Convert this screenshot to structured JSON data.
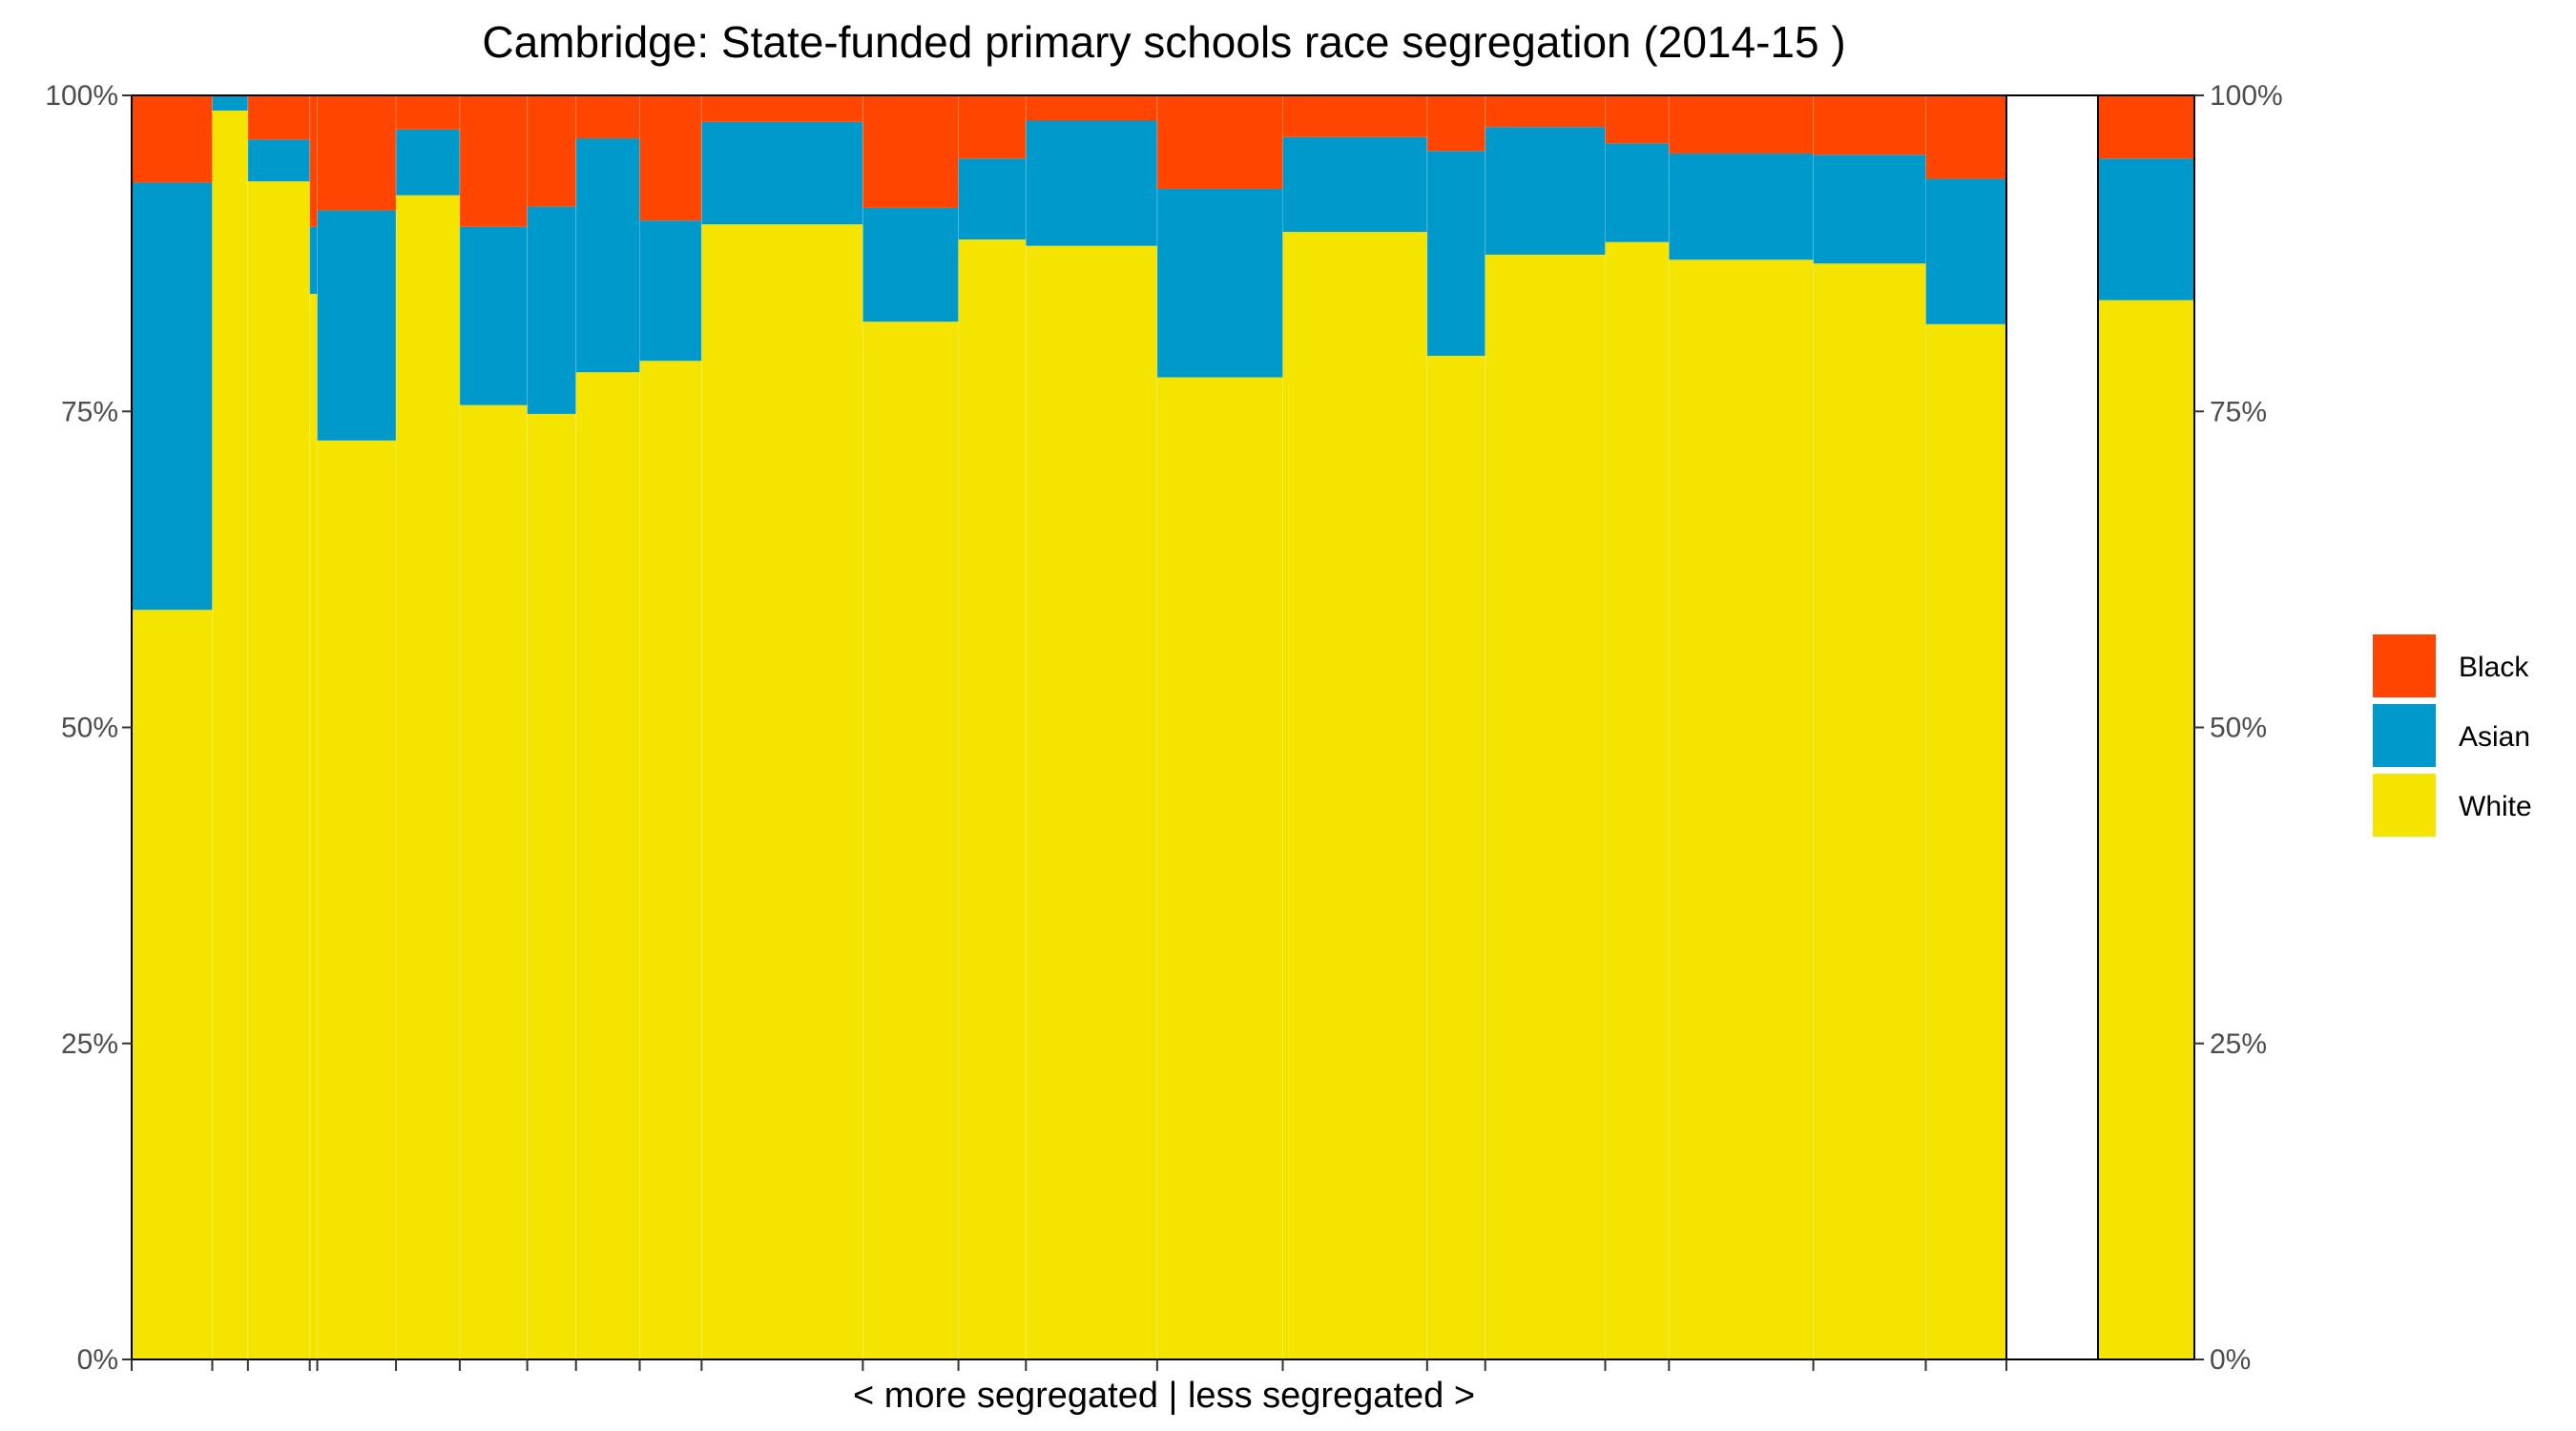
{
  "chart_data": {
    "type": "bar",
    "title": "Cambridge: State-funded primary schools race segregation (2014-15 )",
    "xlabel": "< more segregated | less segregated >",
    "ylabel": "",
    "ylim": [
      0,
      100
    ],
    "y_ticks": [
      "0%",
      "25%",
      "50%",
      "75%",
      "100%"
    ],
    "legend": {
      "position": "right",
      "entries": [
        "Black",
        "Asian",
        "White"
      ]
    },
    "colors": {
      "White": "#F5E300",
      "Asian": "#0099CC",
      "Black": "#FF4500"
    },
    "schools": [
      {
        "x0": 0.0,
        "x1": 4.3,
        "white": 59.3,
        "asian": 33.8,
        "black": 6.9
      },
      {
        "x0": 4.3,
        "x1": 6.2,
        "white": 98.8,
        "asian": 1.2,
        "black": 0.0
      },
      {
        "x0": 6.2,
        "x1": 9.5,
        "white": 93.2,
        "asian": 3.3,
        "black": 3.5
      },
      {
        "x0": 9.5,
        "x1": 9.9,
        "white": 84.3,
        "asian": 5.3,
        "black": 10.4
      },
      {
        "x0": 9.9,
        "x1": 14.1,
        "white": 72.7,
        "asian": 18.2,
        "black": 9.1
      },
      {
        "x0": 14.1,
        "x1": 17.5,
        "white": 92.1,
        "asian": 5.2,
        "black": 2.7
      },
      {
        "x0": 17.5,
        "x1": 21.1,
        "white": 75.5,
        "asian": 14.1,
        "black": 10.4
      },
      {
        "x0": 21.1,
        "x1": 23.7,
        "white": 74.8,
        "asian": 16.4,
        "black": 8.8
      },
      {
        "x0": 23.7,
        "x1": 27.1,
        "white": 78.1,
        "asian": 18.5,
        "black": 3.4
      },
      {
        "x0": 27.1,
        "x1": 30.4,
        "white": 79.0,
        "asian": 11.1,
        "black": 9.9
      },
      {
        "x0": 30.4,
        "x1": 39.0,
        "white": 89.8,
        "asian": 8.1,
        "black": 2.1
      },
      {
        "x0": 39.0,
        "x1": 44.1,
        "white": 82.1,
        "asian": 9.0,
        "black": 8.9
      },
      {
        "x0": 44.1,
        "x1": 47.7,
        "white": 88.6,
        "asian": 6.4,
        "black": 5.0
      },
      {
        "x0": 47.7,
        "x1": 54.7,
        "white": 88.1,
        "asian": 9.9,
        "black": 2.0
      },
      {
        "x0": 54.7,
        "x1": 61.4,
        "white": 77.7,
        "asian": 14.9,
        "black": 7.4
      },
      {
        "x0": 61.4,
        "x1": 69.1,
        "white": 89.2,
        "asian": 7.5,
        "black": 3.3
      },
      {
        "x0": 69.1,
        "x1": 72.2,
        "white": 79.4,
        "asian": 16.2,
        "black": 4.4
      },
      {
        "x0": 72.2,
        "x1": 78.6,
        "white": 87.4,
        "asian": 10.1,
        "black": 2.5
      },
      {
        "x0": 78.6,
        "x1": 82.0,
        "white": 88.4,
        "asian": 7.8,
        "black": 3.8
      },
      {
        "x0": 82.0,
        "x1": 89.7,
        "white": 87.0,
        "asian": 8.4,
        "black": 4.6
      },
      {
        "x0": 89.7,
        "x1": 95.7,
        "white": 86.7,
        "asian": 8.6,
        "black": 4.7
      },
      {
        "x0": 95.7,
        "x1": 100.0,
        "white": 81.9,
        "asian": 11.5,
        "black": 6.6
      }
    ],
    "total_bar": {
      "white": 83.8,
      "asian": 11.2,
      "black": 5.0
    }
  }
}
